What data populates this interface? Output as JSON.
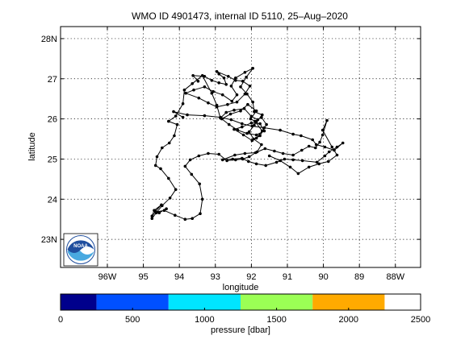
{
  "chart_data": {
    "type": "line",
    "title": "WMO ID 4901473, internal ID 5110, 25–Aug–2020",
    "xlabel": "longitude",
    "ylabel": "latitude",
    "xlim": [
      -97.3,
      -87.3
    ],
    "ylim": [
      22.3,
      28.3
    ],
    "grid": true,
    "x_ticks": [
      {
        "value": -96,
        "label": "96W"
      },
      {
        "value": -95,
        "label": "95"
      },
      {
        "value": -94,
        "label": "94"
      },
      {
        "value": -93,
        "label": "93"
      },
      {
        "value": -92,
        "label": "92"
      },
      {
        "value": -91,
        "label": "91"
      },
      {
        "value": -90,
        "label": "90"
      },
      {
        "value": -89,
        "label": "89"
      },
      {
        "value": -88,
        "label": "88W"
      }
    ],
    "y_ticks": [
      {
        "value": 23,
        "label": "23N"
      },
      {
        "value": 24,
        "label": "24"
      },
      {
        "value": 25,
        "label": "25"
      },
      {
        "value": 26,
        "label": "26"
      },
      {
        "value": 27,
        "label": "27"
      },
      {
        "value": 28,
        "label": "28N"
      }
    ],
    "series": [
      {
        "marker": "dot",
        "color": "#000000",
        "points": [
          [
            -94.76,
            23.52
          ],
          [
            -94.64,
            23.66
          ],
          [
            -94.48,
            23.84
          ],
          [
            -94.26,
            24.03
          ],
          [
            -94.1,
            24.24
          ],
          [
            -94.3,
            24.52
          ],
          [
            -94.52,
            24.76
          ],
          [
            -94.66,
            24.84
          ],
          [
            -94.62,
            25.06
          ],
          [
            -94.48,
            25.28
          ],
          [
            -94.28,
            25.4
          ],
          [
            -94.14,
            25.58
          ],
          [
            -94.06,
            25.86
          ],
          [
            -94.3,
            25.94
          ],
          [
            -94.1,
            26.07
          ],
          [
            -93.9,
            26.38
          ],
          [
            -93.86,
            26.72
          ],
          [
            -93.64,
            26.88
          ],
          [
            -93.36,
            27.08
          ],
          [
            -93.1,
            26.64
          ],
          [
            -92.96,
            26.34
          ],
          [
            -92.86,
            26.02
          ],
          [
            -92.7,
            26.16
          ],
          [
            -92.48,
            26.22
          ],
          [
            -92.2,
            26.26
          ],
          [
            -92.0,
            26.06
          ],
          [
            -91.82,
            25.98
          ],
          [
            -91.92,
            25.84
          ],
          [
            -92.06,
            25.68
          ],
          [
            -91.94,
            25.5
          ],
          [
            -91.72,
            25.36
          ],
          [
            -91.84,
            25.18
          ],
          [
            -92.06,
            25.06
          ],
          [
            -92.24,
            25.0
          ],
          [
            -92.44,
            24.98
          ],
          [
            -92.68,
            24.96
          ],
          [
            -92.9,
            25.12
          ],
          [
            -93.2,
            25.14
          ],
          [
            -93.46,
            25.08
          ],
          [
            -93.7,
            24.98
          ],
          [
            -93.84,
            24.82
          ],
          [
            -93.66,
            24.62
          ],
          [
            -93.44,
            24.38
          ],
          [
            -93.36,
            24.0
          ],
          [
            -93.42,
            23.64
          ],
          [
            -93.64,
            23.52
          ],
          [
            -93.84,
            23.5
          ],
          [
            -94.12,
            23.6
          ],
          [
            -94.42,
            23.72
          ],
          [
            -94.66,
            23.68
          ],
          [
            -94.76,
            23.58
          ],
          [
            -94.7,
            23.72
          ],
          [
            -94.5,
            23.86
          ],
          [
            -94.66,
            23.7
          ],
          [
            -94.56,
            23.66
          ],
          [
            -94.36,
            23.76
          ]
        ]
      },
      {
        "marker": "dot",
        "color": "#000000",
        "points": [
          [
            -93.9,
            26.04
          ],
          [
            -94.16,
            26.18
          ],
          [
            -93.78,
            26.1
          ],
          [
            -93.3,
            26.08
          ],
          [
            -92.86,
            26.04
          ],
          [
            -92.56,
            25.98
          ],
          [
            -92.26,
            25.88
          ],
          [
            -91.98,
            25.82
          ],
          [
            -91.64,
            25.78
          ],
          [
            -91.2,
            25.72
          ],
          [
            -90.84,
            25.62
          ],
          [
            -90.62,
            25.58
          ],
          [
            -90.3,
            25.48
          ],
          [
            -90.2,
            25.36
          ],
          [
            -89.96,
            25.3
          ],
          [
            -89.7,
            25.22
          ],
          [
            -89.46,
            25.4
          ],
          [
            -89.62,
            25.3
          ],
          [
            -89.84,
            25.18
          ],
          [
            -89.96,
            25.08
          ],
          [
            -90.18,
            24.92
          ],
          [
            -90.58,
            24.96
          ],
          [
            -90.84,
            24.98
          ],
          [
            -91.08,
            25.0
          ],
          [
            -91.3,
            24.92
          ],
          [
            -91.6,
            24.84
          ],
          [
            -91.86,
            24.88
          ],
          [
            -92.08,
            24.94
          ],
          [
            -92.26,
            25.02
          ],
          [
            -92.52,
            25.0
          ],
          [
            -92.8,
            24.98
          ],
          [
            -92.46,
            25.1
          ],
          [
            -92.18,
            25.14
          ],
          [
            -91.88,
            25.16
          ],
          [
            -91.62,
            25.26
          ],
          [
            -91.36,
            25.2
          ],
          [
            -91.12,
            25.14
          ],
          [
            -90.84,
            25.1
          ],
          [
            -90.6,
            25.22
          ],
          [
            -90.4,
            25.32
          ],
          [
            -90.22,
            25.28
          ],
          [
            -90.1,
            25.42
          ],
          [
            -90.02,
            25.6
          ],
          [
            -89.9,
            25.96
          ],
          [
            -90.02,
            25.72
          ],
          [
            -89.76,
            25.3
          ],
          [
            -89.62,
            25.1
          ],
          [
            -89.86,
            24.94
          ],
          [
            -90.12,
            24.88
          ],
          [
            -90.4,
            24.8
          ],
          [
            -90.7,
            24.64
          ],
          [
            -90.92,
            24.8
          ],
          [
            -91.2,
            24.96
          ],
          [
            -91.5,
            25.08
          ]
        ]
      },
      {
        "marker": "dot",
        "color": "#000000",
        "points": [
          [
            -93.48,
            26.94
          ],
          [
            -93.62,
            27.08
          ],
          [
            -93.3,
            27.06
          ],
          [
            -93.1,
            26.96
          ],
          [
            -92.9,
            26.9
          ],
          [
            -92.7,
            26.86
          ],
          [
            -92.76,
            27.02
          ],
          [
            -92.9,
            27.12
          ],
          [
            -92.96,
            27.18
          ],
          [
            -92.64,
            27.06
          ],
          [
            -92.44,
            26.96
          ],
          [
            -92.24,
            26.94
          ],
          [
            -92.04,
            26.82
          ],
          [
            -92.18,
            26.62
          ],
          [
            -92.4,
            26.42
          ],
          [
            -92.66,
            26.36
          ],
          [
            -92.96,
            26.3
          ],
          [
            -93.2,
            26.4
          ],
          [
            -93.46,
            26.52
          ],
          [
            -93.82,
            26.64
          ],
          [
            -93.6,
            26.72
          ],
          [
            -93.3,
            26.8
          ],
          [
            -93.06,
            26.68
          ],
          [
            -92.8,
            26.6
          ],
          [
            -92.54,
            26.44
          ],
          [
            -92.4,
            26.6
          ],
          [
            -92.56,
            26.82
          ],
          [
            -92.44,
            27.02
          ],
          [
            -92.18,
            27.16
          ],
          [
            -91.96,
            27.26
          ],
          [
            -92.14,
            27.04
          ],
          [
            -92.3,
            26.8
          ],
          [
            -92.12,
            26.62
          ],
          [
            -91.96,
            26.42
          ],
          [
            -91.92,
            26.18
          ],
          [
            -91.7,
            26.1
          ],
          [
            -91.86,
            25.92
          ],
          [
            -92.02,
            26.0
          ],
          [
            -91.86,
            26.2
          ],
          [
            -92.1,
            26.36
          ],
          [
            -92.3,
            26.2
          ],
          [
            -92.58,
            26.12
          ],
          [
            -92.82,
            26.0
          ],
          [
            -92.62,
            25.86
          ],
          [
            -92.38,
            25.72
          ],
          [
            -92.12,
            25.64
          ],
          [
            -91.86,
            25.6
          ],
          [
            -91.64,
            25.7
          ],
          [
            -91.76,
            25.88
          ],
          [
            -92.0,
            25.9
          ],
          [
            -92.26,
            25.8
          ],
          [
            -92.48,
            25.74
          ],
          [
            -92.22,
            25.6
          ],
          [
            -91.98,
            25.46
          ],
          [
            -91.76,
            25.58
          ],
          [
            -91.58,
            25.86
          ],
          [
            -91.72,
            26.04
          ],
          [
            -91.9,
            25.94
          ],
          [
            -91.7,
            25.7
          ],
          [
            -91.86,
            25.52
          ]
        ]
      }
    ]
  },
  "colorbar": {
    "label": "pressure [dbar]",
    "ticks": [
      {
        "value": 0,
        "label": "0"
      },
      {
        "value": 500,
        "label": "500"
      },
      {
        "value": 1000,
        "label": "1000"
      },
      {
        "value": 1500,
        "label": "1500"
      },
      {
        "value": 2000,
        "label": "2000"
      },
      {
        "value": 2500,
        "label": "2500"
      }
    ],
    "range": [
      0,
      2500
    ],
    "segments": [
      {
        "from": 0,
        "to": 250,
        "color": "#00008c"
      },
      {
        "from": 250,
        "to": 750,
        "color": "#0050ff"
      },
      {
        "from": 750,
        "to": 1250,
        "color": "#00e5ff"
      },
      {
        "from": 1250,
        "to": 1750,
        "color": "#9bff55"
      },
      {
        "from": 1750,
        "to": 2250,
        "color": "#ffaa00"
      }
    ]
  },
  "logo": {
    "text": "NOAA",
    "colors": [
      "#1f4e9e",
      "#49a9e0",
      "#ffffff"
    ]
  }
}
